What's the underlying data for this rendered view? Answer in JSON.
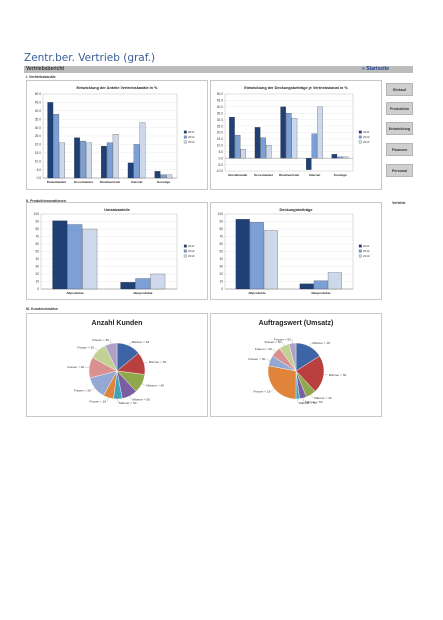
{
  "page": {
    "title": "Zentr.ber. Vertrieb (graf.)"
  },
  "report_bar": {
    "label": "Vertriebsbericht",
    "link": "» Startseite"
  },
  "sections": {
    "s1": "I. Vertriebskanäle",
    "s2": "II. Produktinnovationen",
    "s3": "III. Kundenstruktur"
  },
  "side_buttons": [
    "Einkauf",
    "Produktion",
    "Entwicklung",
    "Finanzen",
    "Personal"
  ],
  "side_note": "Vertrieb",
  "colors": {
    "dark": "#1f3f75",
    "mid": "#7c9fd6",
    "light": "#cdd8ea"
  },
  "chart_data": [
    {
      "type": "bar",
      "title": "Entwicklung der Anteile Vertriebskanäle in %",
      "categories": [
        "Einzelhandel",
        "Grosshandel",
        "Direktvertrieb",
        "Internet",
        "Sonstige"
      ],
      "series": [
        {
          "name": "2011",
          "values": [
            45,
            24,
            19,
            9,
            4
          ]
        },
        {
          "name": "2012",
          "values": [
            38,
            22,
            21,
            20,
            2
          ]
        },
        {
          "name": "2013",
          "values": [
            21,
            21,
            26,
            33,
            2
          ]
        }
      ],
      "ylim": [
        0,
        50
      ],
      "yticks": [
        "50.0",
        "45.0",
        "40.0",
        "35.0",
        "30.0",
        "25.0",
        "20.0",
        "15.0",
        "10.0",
        "5.0",
        "0.0"
      ],
      "legend": "right",
      "legend_labels": [
        "2011",
        "2012",
        "2013"
      ]
    },
    {
      "type": "bar",
      "title": "Entwicklung der Deckungsbeiträge je Vertriebskanal in %",
      "categories": [
        "Einzelhandel",
        "Grosshandel",
        "Direktvertrieb",
        "Internet",
        "Sonstige"
      ],
      "series": [
        {
          "name": "2011",
          "values": [
            32,
            24,
            40,
            -9,
            3
          ]
        },
        {
          "name": "2012",
          "values": [
            18,
            16,
            35,
            19,
            1
          ]
        },
        {
          "name": "2013",
          "values": [
            7,
            10,
            31,
            40,
            1
          ]
        }
      ],
      "ylim": [
        -10,
        50
      ],
      "yticks": [
        "50.0",
        "45.0",
        "40.0",
        "35.0",
        "30.0",
        "25.0",
        "20.0",
        "15.0",
        "10.0",
        "5.0",
        "0.0",
        "-5.0",
        "-10.0"
      ],
      "legend": "right",
      "legend_labels": [
        "2011",
        "2012",
        "2013"
      ]
    },
    {
      "type": "bar",
      "title": "Umsatzanteile",
      "categories": [
        "Altprodukte",
        "Neuprodukte"
      ],
      "series": [
        {
          "name": "2011",
          "values": [
            91,
            9
          ]
        },
        {
          "name": "2012",
          "values": [
            86,
            14
          ]
        },
        {
          "name": "2013",
          "values": [
            80,
            20
          ]
        }
      ],
      "ylim": [
        0,
        100
      ],
      "yticks": [
        "100",
        "90",
        "80",
        "70",
        "60",
        "50",
        "40",
        "30",
        "20",
        "10",
        "0"
      ],
      "legend": "right",
      "legend_labels": [
        "2011",
        "2012",
        "2013"
      ]
    },
    {
      "type": "bar",
      "title": "Deckungsbeiträge",
      "categories": [
        "Altprodukte",
        "Neuprodukte"
      ],
      "series": [
        {
          "name": "2011",
          "values": [
            93,
            7
          ]
        },
        {
          "name": "2012",
          "values": [
            89,
            11
          ]
        },
        {
          "name": "2013",
          "values": [
            78,
            22
          ]
        }
      ],
      "ylim": [
        0,
        100
      ],
      "yticks": [
        "100",
        "90",
        "80",
        "70",
        "60",
        "50",
        "40",
        "30",
        "20",
        "10",
        "0"
      ],
      "legend": "right",
      "legend_labels": [
        "2011",
        "2012",
        "2013"
      ]
    },
    {
      "type": "pie",
      "title": "Anzahl Kunden",
      "labels": [
        "Männer < 18",
        "Männer < 30",
        "Männer < 40",
        "Männer < 50",
        "Männer > 50",
        "Frauen < 18",
        "Frauen < 30",
        "Frauen < 40",
        "Frauen < 50",
        "Frauen > 50"
      ],
      "values": [
        14,
        13,
        11,
        9,
        5,
        6,
        13,
        12,
        10,
        7
      ],
      "colors": [
        "#3d64a4",
        "#b9403e",
        "#8ea84b",
        "#7a5ea0",
        "#3fa3bb",
        "#e0843a",
        "#93a9d3",
        "#d9918f",
        "#c3d195",
        "#b1a0c6"
      ]
    },
    {
      "type": "pie",
      "title": "Auftragswert (Umsatz)",
      "labels": [
        "Männer < 18",
        "Männer < 30",
        "Männer < 40",
        "Männer < 50",
        "Männer > 50",
        "Frauen < 18",
        "Frauen < 30",
        "Frauen < 40",
        "Frauen < 50",
        "Frauen > 50"
      ],
      "values": [
        16,
        22,
        6,
        4,
        2,
        28,
        6,
        6,
        6,
        4
      ],
      "colors": [
        "#3d64a4",
        "#b9403e",
        "#8ea84b",
        "#7a5ea0",
        "#3fa3bb",
        "#e0843a",
        "#93a9d3",
        "#d9918f",
        "#c3d195",
        "#b1a0c6"
      ]
    }
  ]
}
